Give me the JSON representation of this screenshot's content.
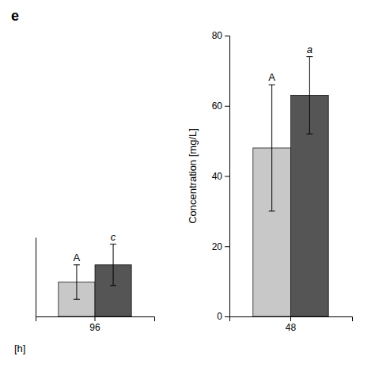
{
  "chart_data": [
    {
      "type": "bar",
      "title": "e",
      "xlabel": "[h]",
      "categories": [
        "96"
      ],
      "series": [
        {
          "color": "#c8c8c8",
          "values": [
            10.0
          ],
          "errors": [
            5.0
          ]
        },
        {
          "color": "#555555",
          "values": [
            15.0
          ],
          "errors": [
            6.0
          ]
        }
      ],
      "annotations": [
        "A",
        "c"
      ],
      "ylim": [
        0,
        23
      ],
      "tick_labels": "x"
    },
    {
      "type": "bar",
      "ylabel": "Concentration [mg/L]",
      "categories": [
        "48"
      ],
      "series": [
        {
          "color": "#c8c8c8",
          "values": [
            48.0
          ],
          "errors": [
            18.0
          ]
        },
        {
          "color": "#555555",
          "values": [
            63.0
          ],
          "errors": [
            11.0
          ]
        }
      ],
      "annotations": [
        "A",
        "a"
      ],
      "ylim": [
        0,
        80
      ],
      "yticks": [
        0,
        20,
        40,
        60,
        80
      ]
    }
  ]
}
